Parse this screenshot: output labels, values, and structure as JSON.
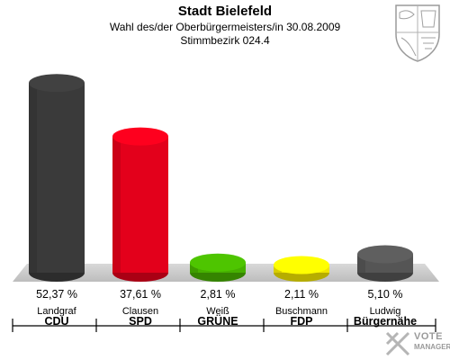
{
  "header": {
    "title": "Stadt Bielefeld",
    "subtitle1": "Wahl des/der Oberbürgermeisters/in 30.08.2009",
    "subtitle2": "Stimmbezirk 024.4"
  },
  "brand": {
    "line1": "VOTE",
    "line2": "MANAGER"
  },
  "chart_data": {
    "type": "bar",
    "title": "Stadt Bielefeld",
    "ylim": [
      0,
      60
    ],
    "grid": false,
    "categories": [
      "Landgraf",
      "Clausen",
      "Weiß",
      "Buschmann",
      "Ludwig"
    ],
    "parties": [
      "CDU",
      "SPD",
      "GRÜNE",
      "FDP",
      "Bürgernähe"
    ],
    "values": [
      52.37,
      37.61,
      2.81,
      2.11,
      5.1
    ],
    "labels": [
      "52,37 %",
      "37,61 %",
      "2,81 %",
      "2,11 %",
      "5,10 %"
    ],
    "colors": [
      "#3a3a3a",
      "#e3001b",
      "#46b000",
      "#f2e600",
      "#555555"
    ]
  }
}
